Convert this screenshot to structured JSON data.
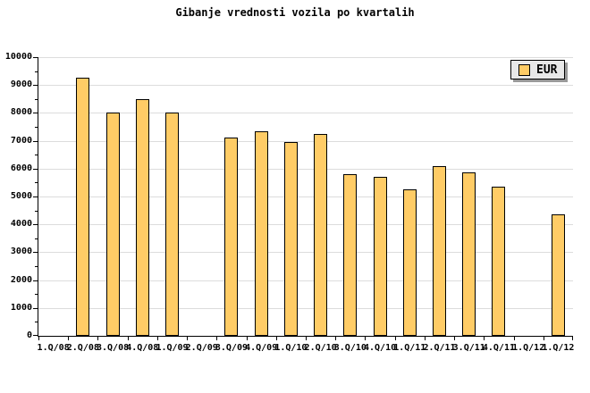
{
  "title": "Gibanje vrednosti vozila po kvartalih",
  "legend": {
    "label": "EUR"
  },
  "colors": {
    "background": "#FFFFFF",
    "bar_fill": "#FFCC66",
    "bar_border": "#000000",
    "gridline": "#DCDCDC",
    "axis": "#000000",
    "legend_bg": "#E8E8E8",
    "legend_shadow": "#999999",
    "text": "#000000"
  },
  "chart_data": {
    "type": "bar",
    "title": "Gibanje vrednosti vozila po kvartalih",
    "series_name": "EUR",
    "categories": [
      "1.Q/08",
      "2.Q/08",
      "3.Q/08",
      "4.Q/08",
      "1.Q/09",
      "2.Q/09",
      "3.Q/09",
      "4.Q/09",
      "1.Q/10",
      "2.Q/10",
      "3.Q/10",
      "4.Q/10",
      "1.Q/11",
      "2.Q/11",
      "3.Q/11",
      "4.Q/11",
      "1.Q/12",
      "1.Q/12"
    ],
    "values": [
      null,
      9250,
      8000,
      8500,
      8000,
      null,
      7100,
      7350,
      6950,
      7250,
      5800,
      5700,
      5250,
      6100,
      5850,
      5350,
      null,
      4350
    ],
    "ylim": [
      0,
      10000
    ],
    "ytick_step": 1000,
    "ytick_minor_step": 500,
    "y_tick_labels": [
      0,
      1000,
      2000,
      3000,
      4000,
      5000,
      6000,
      7000,
      8000,
      9000,
      10000
    ],
    "grid": "horizontal-major",
    "legend_position": "top-right",
    "xlabel": "",
    "ylabel": ""
  }
}
